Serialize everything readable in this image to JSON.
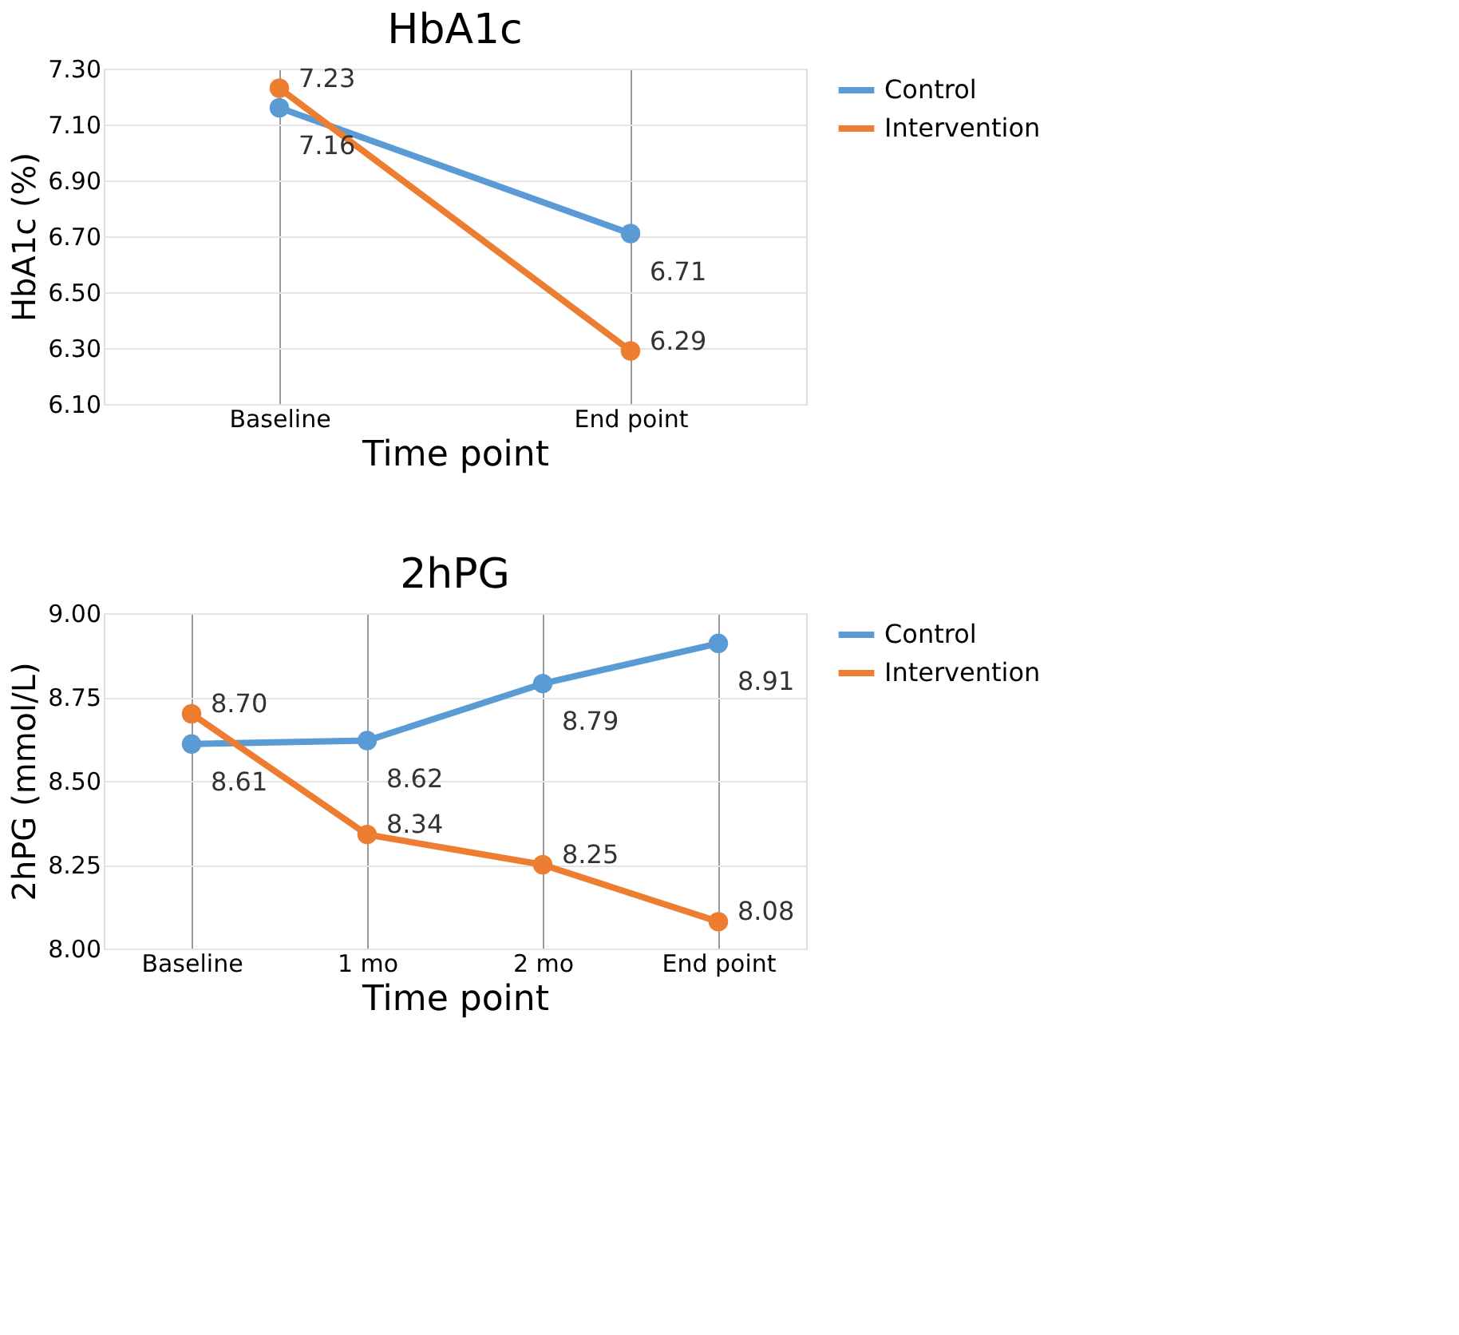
{
  "chart_data": [
    {
      "type": "line",
      "title": "HbA1c",
      "xlabel": "Time point",
      "ylabel": "HbA1c (%)",
      "categories": [
        "Baseline",
        "End point"
      ],
      "series": [
        {
          "name": "Control",
          "color": "#5b9bd5",
          "values": [
            7.16,
            6.71
          ],
          "value_labels": [
            "7.16",
            "6.71"
          ]
        },
        {
          "name": "Intervention",
          "color": "#ed7d31",
          "values": [
            7.23,
            6.29
          ],
          "value_labels": [
            "7.23",
            "6.29"
          ]
        }
      ],
      "ylim": [
        6.1,
        7.3
      ],
      "yticks": [
        {
          "value": 6.1,
          "label": "6.10"
        },
        {
          "value": 6.3,
          "label": "6.30"
        },
        {
          "value": 6.5,
          "label": "6.50"
        },
        {
          "value": 6.7,
          "label": "6.70"
        },
        {
          "value": 6.9,
          "label": "6.90"
        },
        {
          "value": 7.1,
          "label": "7.10"
        },
        {
          "value": 7.3,
          "label": "7.30"
        }
      ],
      "grid": true,
      "legend": "right",
      "marker": "circle"
    },
    {
      "type": "line",
      "title": "2hPG",
      "xlabel": "Time point",
      "ylabel": "2hPG (mmol/L)",
      "categories": [
        "Baseline",
        "1 mo",
        "2 mo",
        "End point"
      ],
      "series": [
        {
          "name": "Control",
          "color": "#5b9bd5",
          "values": [
            8.61,
            8.62,
            8.79,
            8.91
          ],
          "value_labels": [
            "8.61",
            "8.62",
            "8.79",
            "8.91"
          ]
        },
        {
          "name": "Intervention",
          "color": "#ed7d31",
          "values": [
            8.7,
            8.34,
            8.25,
            8.08
          ],
          "value_labels": [
            "8.70",
            "8.34",
            "8.25",
            "8.08"
          ]
        }
      ],
      "ylim": [
        8.0,
        9.0
      ],
      "yticks": [
        {
          "value": 8.0,
          "label": "8.00"
        },
        {
          "value": 8.25,
          "label": "8.25"
        },
        {
          "value": 8.5,
          "label": "8.50"
        },
        {
          "value": 8.75,
          "label": "8.75"
        },
        {
          "value": 9.0,
          "label": "9.00"
        }
      ],
      "grid": true,
      "legend": "right",
      "marker": "circle"
    }
  ]
}
